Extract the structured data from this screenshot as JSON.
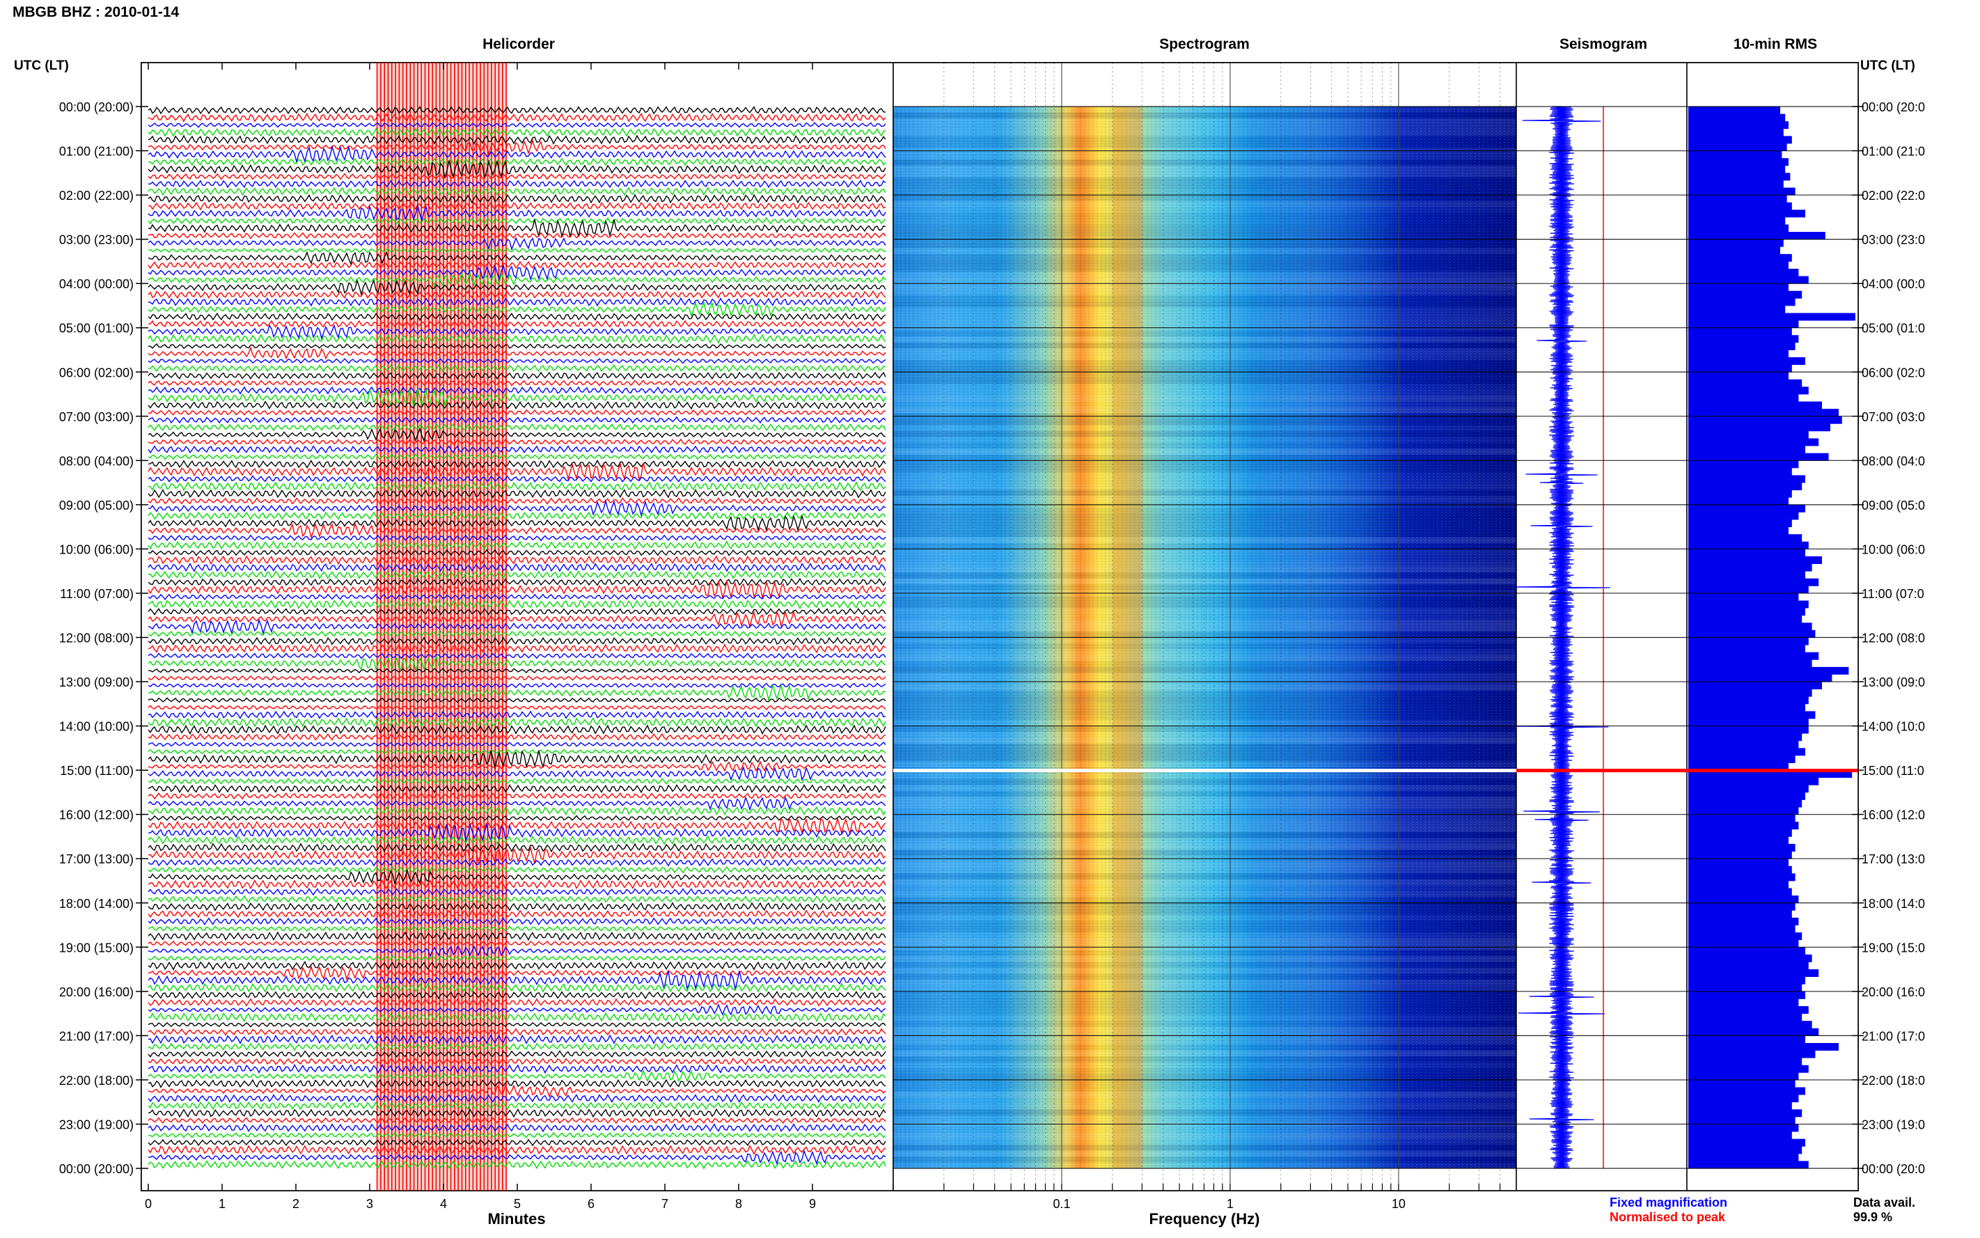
{
  "header": {
    "title": "MBGB BHZ : 2010-01-14",
    "left_axis_label": "UTC (LT)",
    "right_axis_label": "UTC (LT)"
  },
  "panels": {
    "helicorder": "Helicorder",
    "spectrogram": "Spectrogram",
    "seismogram": "Seismogram",
    "rms": "10-min RMS"
  },
  "time_labels": [
    "00:00 (20:00)",
    "01:00 (21:00)",
    "02:00 (22:00)",
    "03:00 (23:00)",
    "04:00 (00:00)",
    "05:00 (01:00)",
    "06:00 (02:00)",
    "07:00 (03:00)",
    "08:00 (04:00)",
    "09:00 (05:00)",
    "10:00 (06:00)",
    "11:00 (07:00)",
    "12:00 (08:00)",
    "13:00 (09:00)",
    "14:00 (10:00)",
    "15:00 (11:00)",
    "16:00 (12:00)",
    "17:00 (13:00)",
    "18:00 (14:00)",
    "19:00 (15:00)",
    "20:00 (16:00)",
    "21:00 (17:00)",
    "22:00 (18:00)",
    "23:00 (19:00)",
    "00:00 (20:00)"
  ],
  "right_time_labels": [
    "00:00 (20:0",
    "01:00 (21:0",
    "02:00 (22:0",
    "03:00 (23:0",
    "04:00 (00:0",
    "05:00 (01:0",
    "06:00 (02:0",
    "07:00 (03:0",
    "08:00 (04:0",
    "09:00 (05:0",
    "10:00 (06:0",
    "11:00 (07:0",
    "12:00 (08:0",
    "13:00 (09:0",
    "14:00 (10:0",
    "15:00 (11:0",
    "16:00 (12:0",
    "17:00 (13:0",
    "18:00 (14:0",
    "19:00 (15:0",
    "20:00 (16:0",
    "21:00 (17:0",
    "22:00 (18:0",
    "23:00 (19:0",
    "00:00 (20:0"
  ],
  "chart_data": [
    {
      "type": "line",
      "name": "Helicorder",
      "xlabel": "Minutes",
      "xlim": [
        0,
        10
      ],
      "x_ticks": [
        "0",
        "1",
        "2",
        "3",
        "4",
        "5",
        "6",
        "7",
        "8",
        "9"
      ],
      "traces_per_hour": 6,
      "trace_colors": [
        "#000000",
        "#ff0000",
        "#0000ff",
        "#00dd00"
      ],
      "highlight_minutes": [
        3.1,
        4.85
      ],
      "highlight_color": "#ff0000"
    },
    {
      "type": "heatmap",
      "name": "Spectrogram",
      "xlabel": "Frequency (Hz)",
      "x_scale": "log",
      "xlim": [
        0.01,
        50
      ],
      "x_ticks": [
        "0.1",
        "1",
        "10"
      ],
      "peak_band_hz": [
        0.2,
        0.3
      ],
      "gap_time": "15:00"
    },
    {
      "type": "line",
      "name": "Seismogram",
      "legend": [
        {
          "label": "Fixed magnification",
          "color": "#0000ff"
        },
        {
          "label": "Normalised to peak",
          "color": "#ff0000"
        }
      ]
    },
    {
      "type": "bar",
      "name": "10-min RMS",
      "orientation": "horizontal",
      "bin_minutes": 10,
      "color": "#0000ee",
      "gap_color": "#ff0000",
      "gap_bin": 90,
      "values": [
        0.55,
        0.58,
        0.6,
        0.57,
        0.62,
        0.59,
        0.56,
        0.6,
        0.58,
        0.61,
        0.57,
        0.64,
        0.59,
        0.62,
        0.7,
        0.58,
        0.6,
        0.82,
        0.57,
        0.55,
        0.62,
        0.6,
        0.66,
        0.72,
        0.6,
        0.68,
        0.64,
        0.58,
        1.0,
        0.66,
        0.62,
        0.66,
        0.64,
        0.6,
        0.7,
        0.62,
        0.6,
        0.68,
        0.72,
        0.66,
        0.8,
        0.9,
        0.92,
        0.85,
        0.72,
        0.78,
        0.7,
        0.84,
        0.66,
        0.62,
        0.7,
        0.68,
        0.62,
        0.6,
        0.7,
        0.66,
        0.62,
        0.6,
        0.68,
        0.72,
        0.7,
        0.8,
        0.74,
        0.7,
        0.78,
        0.72,
        0.66,
        0.72,
        0.7,
        0.68,
        0.74,
        0.76,
        0.72,
        0.7,
        0.78,
        0.74,
        0.96,
        0.86,
        0.8,
        0.74,
        0.72,
        0.7,
        0.76,
        0.72,
        0.72,
        0.68,
        0.66,
        0.7,
        0.64,
        0.6,
        0.98,
        0.78,
        0.72,
        0.7,
        0.68,
        0.66,
        0.64,
        0.66,
        0.62,
        0.6,
        0.64,
        0.62,
        0.6,
        0.62,
        0.64,
        0.6,
        0.62,
        0.66,
        0.64,
        0.62,
        0.66,
        0.64,
        0.68,
        0.66,
        0.7,
        0.74,
        0.72,
        0.78,
        0.7,
        0.68,
        0.7,
        0.66,
        0.72,
        0.68,
        0.74,
        0.78,
        0.7,
        0.9,
        0.76,
        0.68,
        0.72,
        0.66,
        0.64,
        0.7,
        0.66,
        0.62,
        0.68,
        0.64,
        0.66,
        0.62,
        0.7,
        0.68,
        0.66,
        0.72
      ]
    }
  ],
  "footer": {
    "data_avail_label": "Data avail.",
    "data_avail_value": "99.9 %"
  }
}
